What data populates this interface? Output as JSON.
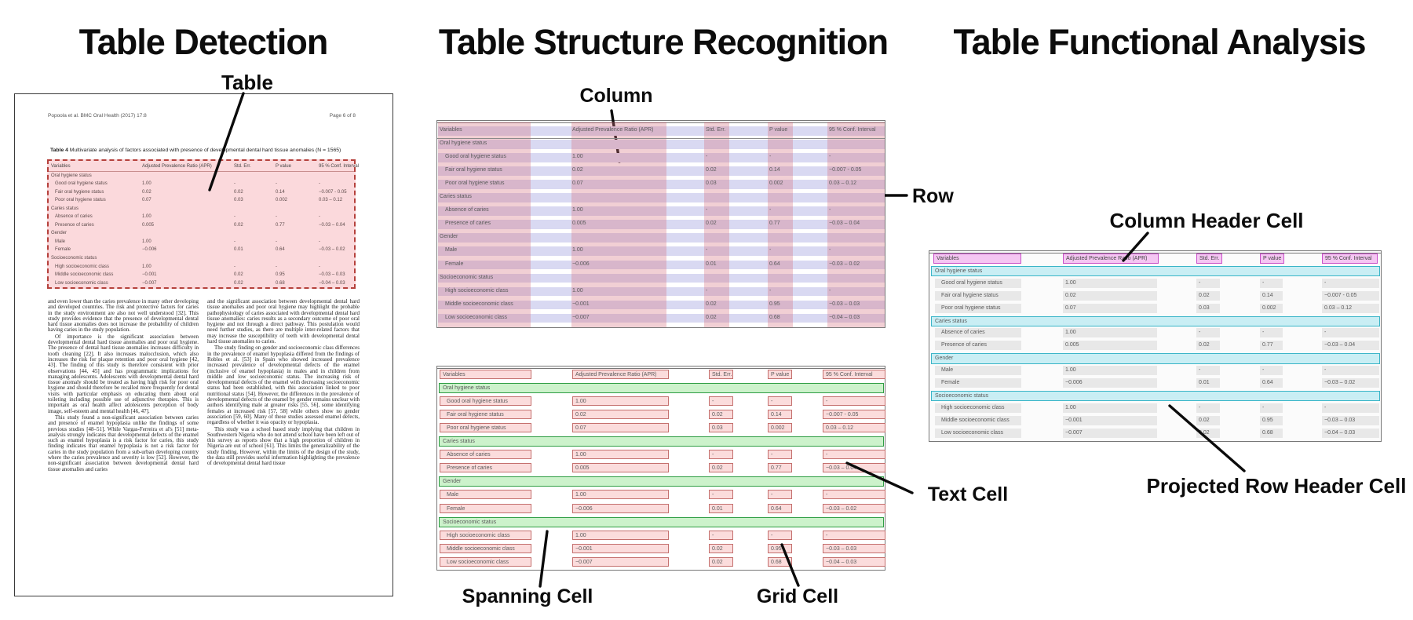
{
  "titles": {
    "detection": "Table Detection",
    "structure": "Table Structure Recognition",
    "functional": "Table Functional Analysis"
  },
  "annotations": {
    "table": "Table",
    "column": "Column",
    "row": "Row",
    "spanning_cell": "Spanning Cell",
    "grid_cell": "Grid Cell",
    "text_cell": "Text Cell",
    "column_header_cell": "Column Header Cell",
    "projected_row_header_cell": "Projected Row Header Cell"
  },
  "document": {
    "header_left": "Popoola et al. BMC Oral Health  (2017) 17:8",
    "header_right": "Page 6 of 8",
    "caption_bold": "Table 4",
    "caption_rest": " Multivariate analysis of factors associated with presence of developmental dental hard tissue anomalies (N = 1565)",
    "body_left": [
      "and even lower than the caries prevalence in many other developing and developed countries. The risk and protective factors for caries in the study environment are also not well understood [32]. This study provides evidence that the presence of developmental dental hard tissue anomalies does not increase the probability of children having caries in the study population.",
      "Of importance is the significant association between developmental dental hard tissue anomalies and poor oral hygiene. The presence of dental hard tissue anomalies increases difficulty in tooth cleaning [22]. It also increases malocclusion, which also increases the risk for plaque retention and poor oral hygiene [42, 43]. The finding of this study is therefore consistent with prior observations [44, 45] and has programmatic implications for managing adolescents. Adolescents with developmental dental hard tissue anomaly should be treated as having high risk for poor oral hygiene and should therefore be recalled more frequently for dental visits with particular emphasis on educating them about oral toileting including possible use of adjunctive therapies. This is important as oral health affect adolescents perception of body image, self-esteem and mental health [46, 47].",
      "This study found a non-significant association between caries and presence of enamel hypoplasia unlike the findings of some previous studies [48–51]. While Vargas-Ferreira et al's [51] meta-analysis strongly indicates that developmental defects of the enamel such as enamel hypoplasia is a risk factor for caries, this study finding indicates that enamel hypoplasia is not a risk factor for caries in the study population from a sub-urban developing country where the caries prevalence and severity is low [52]. However, the non-significant association between developmental dental hard tissue anomalies and caries"
    ],
    "body_right": [
      "and the significant association between developmental dental hard tissue anomalies and poor oral hygiene may highlight the probable pathophysiology of caries associated with developmental dental hard tissue anomalies: caries results as a secondary outcome of poor oral hygiene and not through a direct pathway. This postulation would need further studies, as there are multiple inter-related factors that may increase the susceptibility of teeth with developmental dental hard tissue anomalies to caries.",
      "The study finding on gender and socioeconomic class differences in the prevalence of enamel hypoplasia differed from the findings of Robles et al. [53] in Spain who showed increased prevalence increased prevalence of developmental defects of the enamel (inclusive of enamel hypoplasia) in males and in children from middle and low socioeconomic status. The increasing risk of developmental defects of the enamel with decreasing socioeconomic status had been established, with this association linked to poor nutritional status [54]. However, the differences in the prevalence of developmental defects of the enamel by gender remains unclear with authors identifying male at greater risks [55, 56], some identifying females at increased risk [57, 58] while others show no gender association [59, 60]. Many of these studies assessed enamel defects, regardless of whether it was opacity or hypoplasia.",
      "This study was a school based study implying that children in Southwestern Nigeria who do not attend school have been left out of this survey as reports show that a high proportion of children in Nigeria are out of school [61]. This limits the generalizability of the study finding. However, within the limits of the design of the study, the data still provides useful information highlighting the prevalence of developmental dental hard tissue"
    ]
  },
  "table": {
    "columns": [
      "Variables",
      "Adjusted Prevalence Ratio (APR)",
      "Std. Err.",
      "P value",
      "95 % Conf. Interval"
    ],
    "rows": [
      {
        "label": "Oral hygiene status",
        "section": true,
        "cells": []
      },
      {
        "label": "Good oral hygiene status",
        "section": false,
        "cells": [
          "1.00",
          "-",
          "-",
          "-"
        ]
      },
      {
        "label": "Fair oral hygiene status",
        "section": false,
        "cells": [
          "0.02",
          "0.02",
          "0.14",
          "−0.007 - 0.05"
        ]
      },
      {
        "label": "Poor oral hygiene status",
        "section": false,
        "cells": [
          "0.07",
          "0.03",
          "0.002",
          "0.03 – 0.12"
        ]
      },
      {
        "label": "Caries status",
        "section": true,
        "cells": []
      },
      {
        "label": "Absence of caries",
        "section": false,
        "cells": [
          "1.00",
          "-",
          "-",
          "-"
        ]
      },
      {
        "label": "Presence of caries",
        "section": false,
        "cells": [
          "0.005",
          "0.02",
          "0.77",
          "−0.03 – 0.04"
        ]
      },
      {
        "label": "Gender",
        "section": true,
        "cells": []
      },
      {
        "label": "Male",
        "section": false,
        "cells": [
          "1.00",
          "-",
          "-",
          "-"
        ]
      },
      {
        "label": "Female",
        "section": false,
        "cells": [
          "−0.006",
          "0.01",
          "0.64",
          "−0.03 – 0.02"
        ]
      },
      {
        "label": "Socioeconomic status",
        "section": true,
        "cells": []
      },
      {
        "label": "High socioeconomic class",
        "section": false,
        "cells": [
          "1.00",
          "-",
          "-",
          "-"
        ]
      },
      {
        "label": "Middle socioeconomic class",
        "section": false,
        "cells": [
          "−0.001",
          "0.02",
          "0.95",
          "−0.03 – 0.03"
        ]
      },
      {
        "label": "Low socioeconomic class",
        "section": false,
        "cells": [
          "−0.007",
          "0.02",
          "0.68",
          "−0.04 – 0.03"
        ]
      }
    ]
  },
  "colors": {
    "detection_fill": "#fbd9dc",
    "detection_border": "#b5413c",
    "row_band": "#d9d9f2",
    "column_band": "rgba(213,115,128,0.34)",
    "cell_fill": "#fbdcdc",
    "cell_border": "#c4706e",
    "spanning_fill": "#ccf2cb",
    "spanning_border": "#2f9e44",
    "header_cell_fill": "#f5c6f2",
    "header_cell_border": "#c94ec9",
    "projected_fill": "#c9eef4",
    "projected_border": "#3ab5c8",
    "text_bar": "#e8e8e8",
    "table_text": "#5a5a5a",
    "pointer": "#0b0b0b"
  }
}
